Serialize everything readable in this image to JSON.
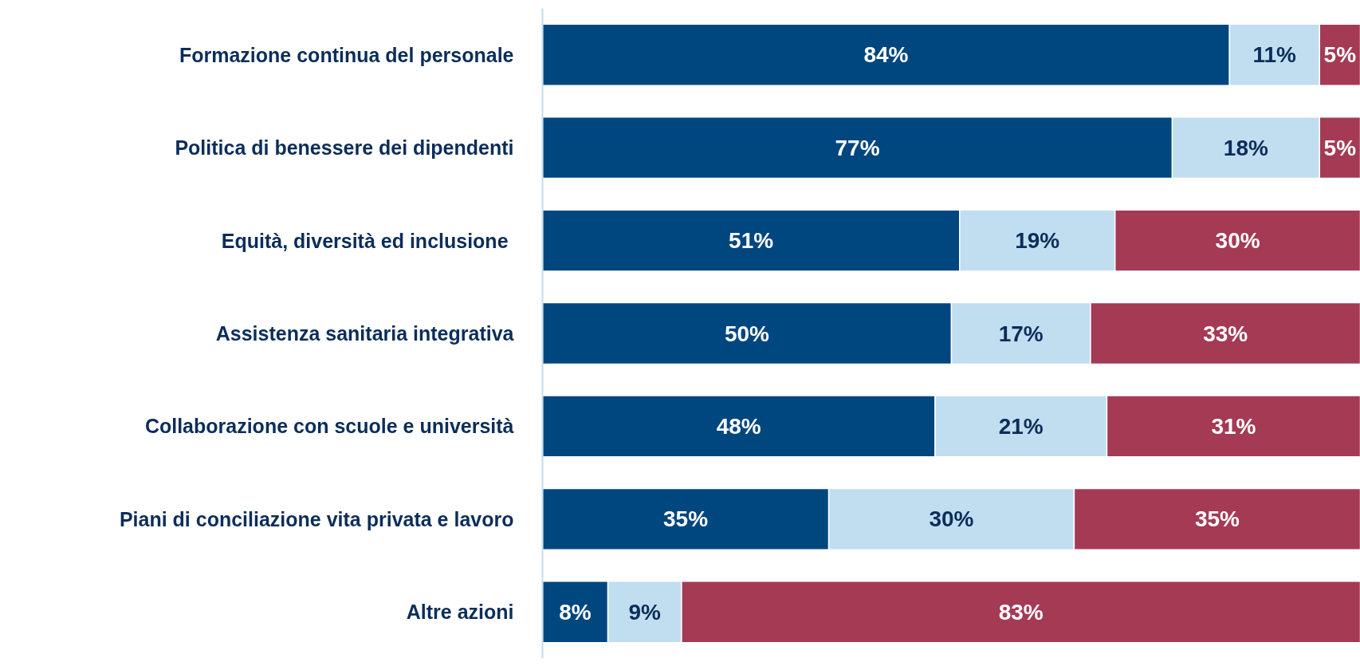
{
  "chart_data": {
    "type": "bar",
    "orientation": "horizontal",
    "stacked": true,
    "grid": false,
    "categories": [
      "Formazione continua del personale",
      "Politica di benessere dei dipendenti",
      "Equità, diversità ed inclusione ",
      "Assistenza sanitaria integrativa",
      "Collaborazione con scuole e università",
      "Piani di conciliazione vita privata e lavoro",
      "Altre azioni"
    ],
    "series": [
      {
        "color": "#00467f",
        "values": [
          84,
          77,
          51,
          50,
          48,
          35,
          8
        ],
        "value_labels": [
          "84%",
          "77%",
          "51%",
          "50%",
          "48%",
          "35%",
          "8%"
        ]
      },
      {
        "color": "#c1ddf0",
        "values": [
          11,
          18,
          19,
          17,
          21,
          30,
          9
        ],
        "value_labels": [
          "11%",
          "18%",
          "19%",
          "17%",
          "21%",
          "30%",
          "9%"
        ]
      },
      {
        "color": "#a53a55",
        "values": [
          5,
          5,
          30,
          33,
          31,
          35,
          83
        ],
        "value_labels": [
          "5%",
          "5%",
          "30%",
          "33%",
          "31%",
          "35%",
          "83%"
        ]
      }
    ]
  }
}
